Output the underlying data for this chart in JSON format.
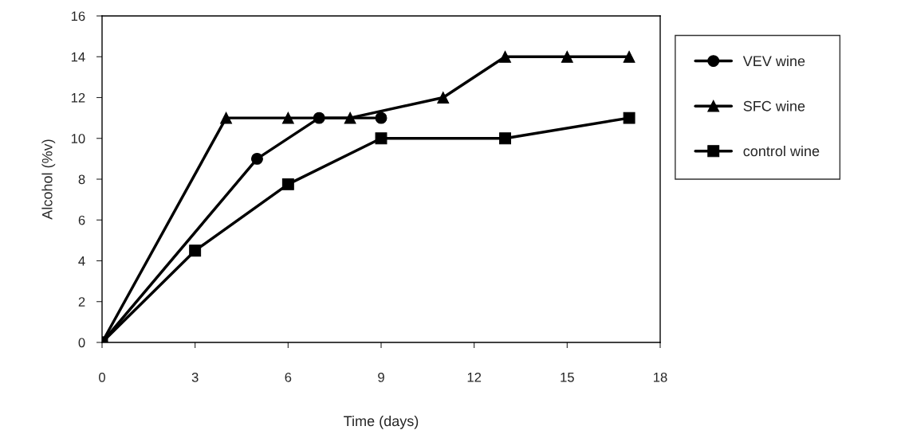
{
  "chart_data": {
    "type": "line",
    "xlabel": "Time (days)",
    "ylabel": "Alcohol (%v)",
    "xlim": [
      0,
      18
    ],
    "xticks": [
      0,
      3,
      6,
      9,
      12,
      15,
      18
    ],
    "ylim": [
      0,
      16
    ],
    "yticks": [
      0,
      2,
      4,
      6,
      8,
      10,
      12,
      14,
      16
    ],
    "grid": false,
    "legend": "right",
    "line_style": "solid",
    "series": [
      {
        "name": "VEV wine",
        "color": "#000000",
        "marker": "circle",
        "x": [
          0,
          5,
          7,
          9
        ],
        "values": [
          0,
          9,
          11,
          11
        ]
      },
      {
        "name": "SFC wine",
        "color": "#000000",
        "marker": "triangle",
        "x": [
          0,
          4,
          6,
          8,
          11,
          13,
          15,
          17
        ],
        "values": [
          0,
          11,
          11,
          11,
          12,
          14,
          14,
          14
        ]
      },
      {
        "name": "control wine",
        "color": "#000000",
        "marker": "square",
        "x": [
          0,
          3,
          6,
          9,
          13,
          17
        ],
        "values": [
          0,
          4.5,
          7.75,
          10,
          10,
          11
        ]
      }
    ]
  }
}
